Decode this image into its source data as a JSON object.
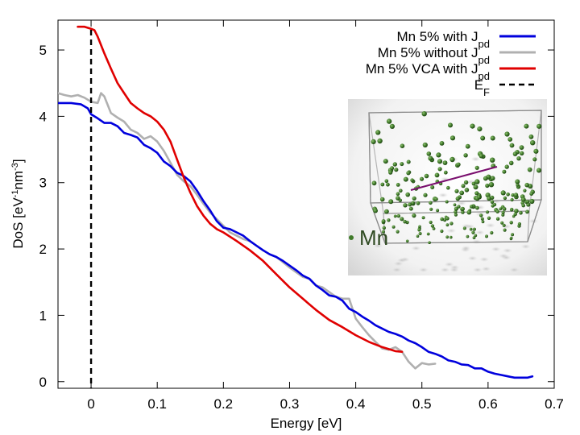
{
  "chart_data": {
    "type": "line",
    "xlabel": "Energy [eV]",
    "ylabel": {
      "base": "DoS [eV",
      "sup1": "-1",
      "mid": "nm",
      "sup2": "-3",
      "end": "]"
    },
    "xlim": [
      -0.05,
      0.7
    ],
    "ylim": [
      -0.1,
      5.45
    ],
    "xticks": [
      {
        "value": 0,
        "label": "0"
      },
      {
        "value": 0.1,
        "label": "0.1"
      },
      {
        "value": 0.2,
        "label": "0.2"
      },
      {
        "value": 0.3,
        "label": "0.3"
      },
      {
        "value": 0.4,
        "label": "0.4"
      },
      {
        "value": 0.5,
        "label": "0.5"
      },
      {
        "value": 0.6,
        "label": "0.6"
      },
      {
        "value": 0.7,
        "label": "0.7"
      }
    ],
    "yticks": [
      {
        "value": 0,
        "label": "0"
      },
      {
        "value": 1,
        "label": "1"
      },
      {
        "value": 2,
        "label": "2"
      },
      {
        "value": 3,
        "label": "3"
      },
      {
        "value": 4,
        "label": "4"
      },
      {
        "value": 5,
        "label": "5"
      }
    ],
    "series": [
      {
        "name": "Mn 5% with J_pd",
        "legend": {
          "base": "Mn 5% with J",
          "sub": "pd"
        },
        "color": "#0000dd",
        "x": [
          -0.05,
          -0.03,
          -0.015,
          -0.005,
          0.0,
          0.01,
          0.02,
          0.03,
          0.04,
          0.05,
          0.06,
          0.07,
          0.08,
          0.09,
          0.1,
          0.11,
          0.12,
          0.13,
          0.14,
          0.15,
          0.16,
          0.17,
          0.18,
          0.19,
          0.2,
          0.21,
          0.22,
          0.23,
          0.24,
          0.25,
          0.26,
          0.27,
          0.28,
          0.29,
          0.3,
          0.31,
          0.32,
          0.33,
          0.34,
          0.35,
          0.36,
          0.37,
          0.38,
          0.39,
          0.4,
          0.41,
          0.42,
          0.43,
          0.44,
          0.45,
          0.46,
          0.47,
          0.48,
          0.49,
          0.5,
          0.51,
          0.52,
          0.53,
          0.54,
          0.55,
          0.56,
          0.57,
          0.58,
          0.59,
          0.6,
          0.61,
          0.62,
          0.63,
          0.64,
          0.65,
          0.66,
          0.667
        ],
        "y": [
          4.2,
          4.2,
          4.18,
          4.12,
          4.03,
          3.97,
          3.9,
          3.9,
          3.85,
          3.75,
          3.72,
          3.68,
          3.57,
          3.52,
          3.45,
          3.32,
          3.25,
          3.15,
          3.1,
          3.02,
          2.88,
          2.72,
          2.58,
          2.42,
          2.32,
          2.3,
          2.25,
          2.2,
          2.12,
          2.05,
          1.98,
          1.92,
          1.88,
          1.82,
          1.75,
          1.68,
          1.6,
          1.55,
          1.45,
          1.38,
          1.3,
          1.28,
          1.22,
          1.1,
          1.05,
          0.98,
          0.92,
          0.85,
          0.8,
          0.75,
          0.72,
          0.68,
          0.62,
          0.58,
          0.52,
          0.45,
          0.42,
          0.38,
          0.32,
          0.3,
          0.26,
          0.25,
          0.2,
          0.2,
          0.15,
          0.12,
          0.1,
          0.08,
          0.06,
          0.06,
          0.06,
          0.08
        ]
      },
      {
        "name": "Mn 5% without J_pd",
        "legend": {
          "base": "Mn 5% without J",
          "sub": "pd"
        },
        "color": "#b0b0b0",
        "x": [
          -0.05,
          -0.04,
          -0.03,
          -0.02,
          -0.01,
          0.0,
          0.01,
          0.015,
          0.02,
          0.03,
          0.04,
          0.05,
          0.06,
          0.07,
          0.08,
          0.09,
          0.1,
          0.11,
          0.12,
          0.13,
          0.14,
          0.15,
          0.16,
          0.17,
          0.18,
          0.19,
          0.2,
          0.21,
          0.22,
          0.23,
          0.24,
          0.25,
          0.26,
          0.27,
          0.28,
          0.29,
          0.3,
          0.31,
          0.32,
          0.33,
          0.34,
          0.35,
          0.36,
          0.37,
          0.38,
          0.39,
          0.4,
          0.41,
          0.42,
          0.43,
          0.44,
          0.45,
          0.46,
          0.47,
          0.48,
          0.49,
          0.5,
          0.51,
          0.52
        ],
        "y": [
          4.35,
          4.32,
          4.3,
          4.32,
          4.28,
          4.22,
          4.2,
          4.35,
          4.3,
          4.05,
          3.98,
          3.92,
          3.8,
          3.75,
          3.66,
          3.7,
          3.62,
          3.48,
          3.3,
          3.12,
          3.02,
          2.95,
          2.82,
          2.68,
          2.55,
          2.45,
          2.35,
          2.25,
          2.2,
          2.15,
          2.12,
          2.05,
          1.98,
          1.92,
          1.88,
          1.8,
          1.72,
          1.65,
          1.58,
          1.55,
          1.45,
          1.42,
          1.35,
          1.28,
          1.25,
          1.25,
          0.95,
          0.82,
          0.7,
          0.6,
          0.5,
          0.48,
          0.52,
          0.45,
          0.3,
          0.2,
          0.28,
          0.26,
          0.27
        ]
      },
      {
        "name": "Mn 5% VCA with J_pd",
        "legend": {
          "base": "Mn 5% VCA with J",
          "sub": "pd"
        },
        "color": "#e00000",
        "x": [
          -0.02,
          -0.01,
          0.0,
          0.005,
          0.01,
          0.02,
          0.03,
          0.04,
          0.05,
          0.06,
          0.07,
          0.08,
          0.09,
          0.1,
          0.11,
          0.12,
          0.13,
          0.14,
          0.15,
          0.16,
          0.17,
          0.18,
          0.19,
          0.2,
          0.22,
          0.24,
          0.26,
          0.28,
          0.3,
          0.32,
          0.34,
          0.36,
          0.38,
          0.4,
          0.42,
          0.44,
          0.46,
          0.47
        ],
        "y": [
          5.35,
          5.35,
          5.32,
          5.3,
          5.2,
          4.95,
          4.72,
          4.5,
          4.35,
          4.2,
          4.12,
          4.05,
          4.0,
          3.92,
          3.8,
          3.62,
          3.35,
          3.08,
          2.85,
          2.65,
          2.5,
          2.38,
          2.3,
          2.25,
          2.12,
          1.98,
          1.82,
          1.62,
          1.42,
          1.25,
          1.08,
          0.93,
          0.82,
          0.7,
          0.6,
          0.52,
          0.46,
          0.45
        ]
      }
    ],
    "reference_line": {
      "name": "E_F",
      "legend": {
        "base": "E",
        "sub": "F"
      },
      "x": 0,
      "color": "#000000",
      "style": "dashed"
    },
    "inset": {
      "label": "Mn"
    }
  }
}
